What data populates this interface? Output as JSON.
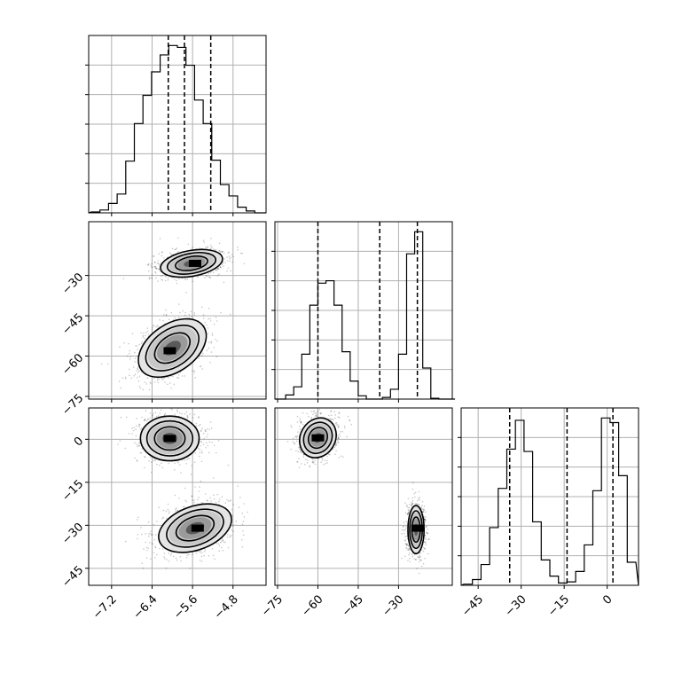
{
  "chart_data": {
    "type": "corner",
    "grid": true,
    "parameters": [
      {
        "id": "p1",
        "range": [
          -7.6,
          -4.2
        ],
        "ticks": [
          -7.2,
          -6.4,
          -5.6,
          -4.8
        ],
        "tick_labels": [
          "−7.2",
          "−6.4",
          "−5.6",
          "−4.8"
        ],
        "quantiles": [
          -6.08,
          -5.76,
          -5.24
        ],
        "histogram": {
          "bin_edges": [
            -7.6,
            -7.43,
            -7.26,
            -7.09,
            -6.92,
            -6.75,
            -6.58,
            -6.41,
            -6.24,
            -6.07,
            -5.9,
            -5.73,
            -5.56,
            -5.39,
            -5.22,
            -5.05,
            -4.88,
            -4.71,
            -4.54,
            -4.37,
            -4.2
          ],
          "counts": [
            1,
            3,
            10,
            20,
            55,
            95,
            125,
            150,
            168,
            178,
            176,
            157,
            120,
            95,
            56,
            30,
            18,
            6,
            2,
            0
          ]
        }
      },
      {
        "id": "p2",
        "range": [
          -75,
          -11
        ],
        "ticks": [
          -75,
          -60,
          -45,
          -30
        ],
        "tick_labels": [
          "−75",
          "−60",
          "−45",
          "−30"
        ],
        "quantiles": [
          -60,
          -37,
          -23
        ],
        "histogram": {
          "bin_edges": [
            -75,
            -72,
            -69,
            -66,
            -63,
            -60,
            -57,
            -54,
            -51,
            -48,
            -45,
            -42,
            -39,
            -36,
            -33,
            -30,
            -27,
            -24,
            -21,
            -18,
            -15,
            -12,
            -9
          ],
          "counts": [
            0,
            5,
            15,
            55,
            115,
            142,
            145,
            115,
            58,
            22,
            4,
            0,
            0,
            2,
            12,
            55,
            178,
            205,
            38,
            1,
            0,
            0
          ]
        }
      },
      {
        "id": "p3",
        "range": [
          -50,
          10
        ],
        "ticks": [
          -45,
          -30,
          -15,
          0
        ],
        "tick_labels": [
          "−45",
          "−30",
          "−15",
          "0"
        ],
        "quantiles": [
          -34,
          -14,
          2
        ],
        "histogram": {
          "bin_edges": [
            -50,
            -47,
            -44,
            -41,
            -38,
            -35,
            -32,
            -29,
            -26,
            -23,
            -20,
            -17,
            -14,
            -11,
            -8,
            -5,
            -2,
            1,
            4,
            7,
            10
          ],
          "counts": [
            1,
            5,
            18,
            50,
            84,
            118,
            143,
            116,
            55,
            22,
            8,
            2,
            3,
            12,
            35,
            82,
            145,
            141,
            95,
            20
          ]
        }
      }
    ],
    "pair_panels": [
      {
        "x": "p1",
        "y": "p2",
        "y_ticks": [
          -75,
          -60,
          -45,
          -30
        ],
        "y_tick_labels": [
          "−75",
          "−60",
          "−45",
          "−30"
        ],
        "modes": [
          {
            "center": [
              -5.62,
              -25.5
            ],
            "axes": [
              0.62,
              4.8
            ],
            "angle_deg": 10,
            "peak": [
              -5.55,
              -25.5
            ]
          },
          {
            "center": [
              -6.0,
              -57
            ],
            "axes": [
              0.75,
              8.8
            ],
            "angle_deg": 35,
            "peak": [
              -6.05,
              -58
            ]
          }
        ]
      },
      {
        "x": "p1",
        "y": "p3",
        "y_ticks": [
          -45,
          -30,
          -15,
          0
        ],
        "y_tick_labels": [
          "−45",
          "−30",
          "−15",
          "0"
        ],
        "modes": [
          {
            "center": [
              -6.05,
              0.3
            ],
            "axes": [
              0.58,
              7.8
            ],
            "angle_deg": 0,
            "peak": [
              -6.05,
              0.3
            ]
          },
          {
            "center": [
              -5.55,
              -31.0
            ],
            "axes": [
              0.75,
              7.6
            ],
            "angle_deg": 20,
            "peak": [
              -5.5,
              -31.0
            ]
          }
        ]
      },
      {
        "x": "p2",
        "y": "p3",
        "y_ticks": [],
        "y_tick_labels": [],
        "modes": [
          {
            "center": [
              -60.0,
              0.5
            ],
            "axes": [
              6.5,
              7.2
            ],
            "angle_deg": -30,
            "peak": [
              -60.0,
              0.5
            ]
          },
          {
            "center": [
              -23.5,
              -31.5
            ],
            "axes": [
              3.0,
              8.4
            ],
            "angle_deg": 0,
            "peak": [
              -23.0,
              -31.0
            ]
          }
        ]
      }
    ]
  }
}
